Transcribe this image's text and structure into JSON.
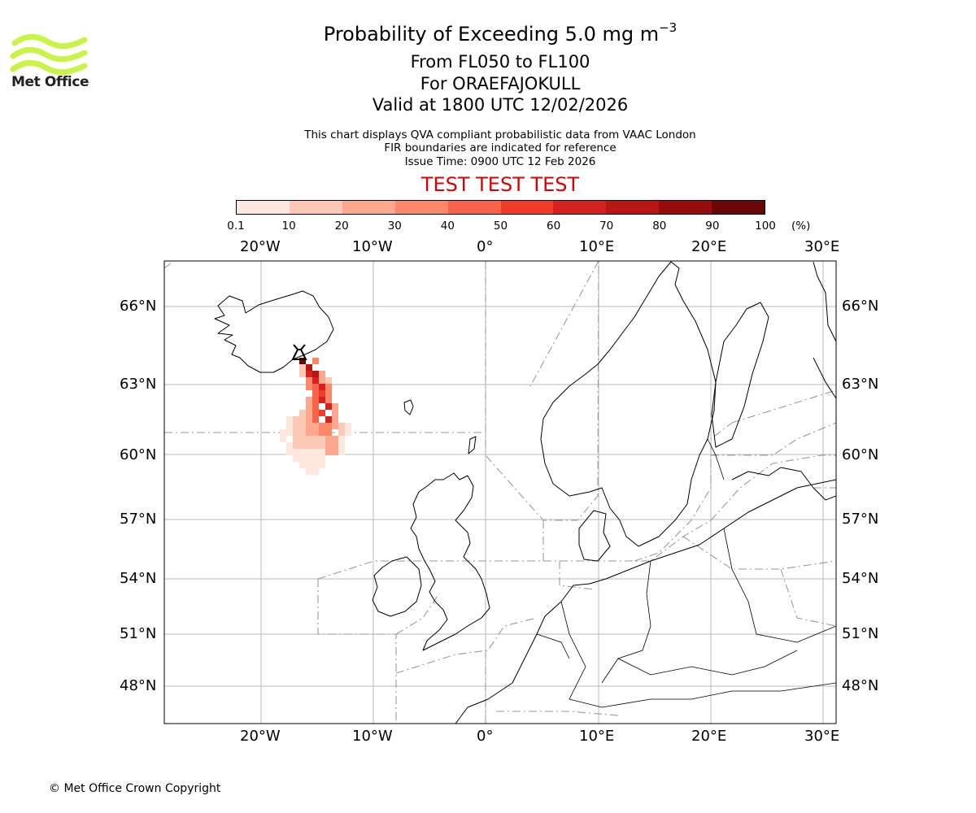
{
  "logo": {
    "text": "Met Office",
    "color": "#c8f545"
  },
  "title": {
    "line1_main": "Probability of Exceeding 5.0 mg m",
    "line1_sup": "−3",
    "line2": "From FL050 to FL100",
    "line3": "For ORAEFAJOKULL",
    "line4": "Valid at 1800 UTC 12/02/2026"
  },
  "info": {
    "line1": "This chart displays QVA compliant probabilistic data from VAAC London",
    "line2": "FIR boundaries are indicated for reference",
    "line3": "Issue Time: 0900 UTC 12 Feb 2026"
  },
  "test_banner": {
    "text": "TEST TEST TEST",
    "color": "#dd0000"
  },
  "colorbar": {
    "labels": [
      "0.1",
      "10",
      "20",
      "30",
      "40",
      "50",
      "60",
      "70",
      "80",
      "90",
      "100"
    ],
    "unit": "(%)",
    "colors": [
      "#fee7dd",
      "#fcc9b6",
      "#fca88e",
      "#fc8769",
      "#f9634a",
      "#f03c27",
      "#d42221",
      "#b81515",
      "#960d0d",
      "#6a0808"
    ]
  },
  "axes": {
    "lon_ticks": [
      "20°W",
      "10°W",
      "0°",
      "10°E",
      "20°E",
      "30°E"
    ],
    "lat_ticks": [
      "66°N",
      "63°N",
      "60°N",
      "57°N",
      "54°N",
      "51°N",
      "48°N"
    ]
  },
  "volcano": {
    "name": "ORAEFAJOKULL",
    "marker": "volcano-icon"
  },
  "copyright": "© Met Office Crown Copyright"
}
